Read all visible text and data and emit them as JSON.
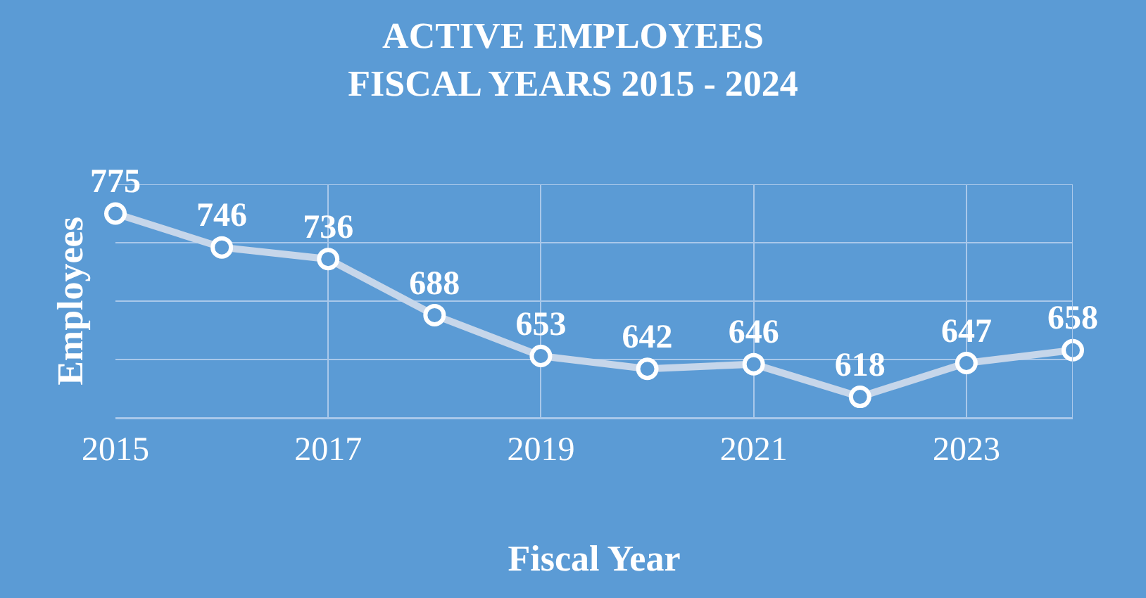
{
  "chart_data": {
    "type": "line",
    "title": "ACTIVE EMPLOYEES\nFISCAL YEARS 2015 - 2024",
    "xlabel": "Fiscal Year",
    "ylabel": "Employees",
    "x": [
      2015,
      2016,
      2017,
      2018,
      2019,
      2020,
      2021,
      2022,
      2023,
      2024
    ],
    "series": [
      {
        "color": "#c6d6ea",
        "values": [
          775,
          746,
          736,
          688,
          653,
          642,
          646,
          618,
          647,
          658
        ]
      }
    ],
    "xlim": [
      2015,
      2024
    ],
    "xticks": [
      2015,
      2017,
      2019,
      2021,
      2023
    ],
    "ylim": [
      600,
      800
    ],
    "yticks": [
      {
        "value": 600,
        "label": null
      },
      {
        "value": 650,
        "label": null
      },
      {
        "value": 700,
        "label": null
      },
      {
        "value": 750,
        "label": null
      },
      {
        "value": 800,
        "label": null
      }
    ],
    "tick_labels": "x",
    "grid": true,
    "data_labels": true,
    "marker": "circle",
    "line_style": "solid"
  }
}
